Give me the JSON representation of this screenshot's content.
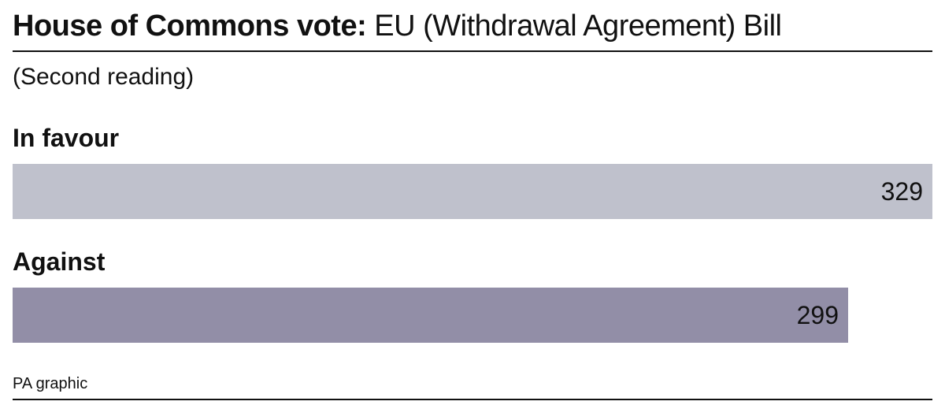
{
  "title": {
    "bold": "House of Commons vote:",
    "normal": " EU (Withdrawal Agreement) Bill"
  },
  "subtitle": "(Second reading)",
  "source": "PA graphic",
  "colors": {
    "in_favour": "#bfc1cc",
    "against": "#928ea7",
    "text": "#111111"
  },
  "chart_data": {
    "type": "bar",
    "orientation": "horizontal",
    "title": "House of Commons vote: EU (Withdrawal Agreement) Bill",
    "subtitle": "(Second reading)",
    "categories": [
      "In favour",
      "Against"
    ],
    "values": [
      329,
      299
    ],
    "value_labels": [
      "329",
      "299"
    ],
    "grid": false,
    "xlim": [
      0,
      329
    ]
  }
}
